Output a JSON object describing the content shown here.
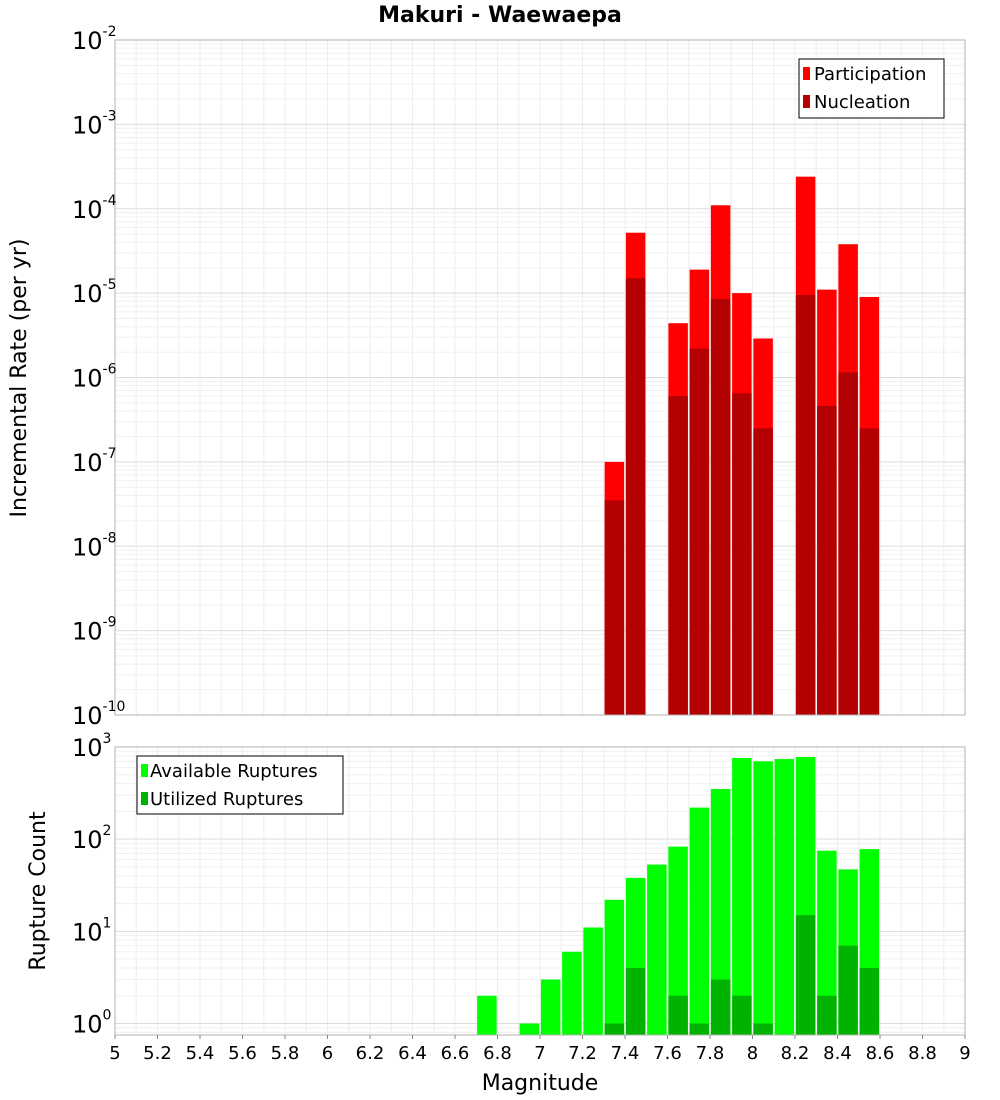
{
  "chart_data": [
    {
      "type": "bar",
      "title": "Makuri - Waewaepa",
      "xlabel": "Magnitude",
      "ylabel": "Incremental Rate (per yr)",
      "yscale": "log",
      "ylim_exp": [
        -10,
        -2
      ],
      "xlim": [
        5,
        9
      ],
      "legend_position": "top-right",
      "colors": {
        "participation": "#ff0000",
        "nucleation": "#b30000"
      },
      "series": [
        {
          "name": "Participation",
          "x": [
            7.35,
            7.45,
            7.65,
            7.75,
            7.85,
            7.95,
            8.05,
            8.25,
            8.35,
            8.45,
            8.55
          ],
          "values": [
            1e-07,
            5.2e-05,
            4.4e-06,
            1.9e-05,
            0.00011,
            1e-05,
            2.9e-06,
            0.00024,
            1.1e-05,
            3.8e-05,
            9e-06
          ]
        },
        {
          "name": "Nucleation",
          "x": [
            7.35,
            7.45,
            7.65,
            7.75,
            7.85,
            7.95,
            8.05,
            8.25,
            8.35,
            8.45,
            8.55
          ],
          "values": [
            3.5e-08,
            1.5e-05,
            6e-07,
            2.2e-06,
            8.5e-06,
            6.5e-07,
            2.5e-07,
            9.5e-06,
            4.6e-07,
            1.15e-06,
            2.5e-07
          ]
        }
      ]
    },
    {
      "type": "bar",
      "xlabel": "Magnitude",
      "ylabel": "Rupture Count",
      "yscale": "log",
      "ylim_exp": [
        0,
        3
      ],
      "ymin_value": 0.75,
      "xlim": [
        5,
        9
      ],
      "legend_position": "top-left",
      "colors": {
        "available": "#00ff00",
        "utilized": "#00b300"
      },
      "series": [
        {
          "name": "Available Ruptures",
          "x": [
            6.75,
            6.95,
            7.05,
            7.15,
            7.25,
            7.35,
            7.45,
            7.55,
            7.65,
            7.75,
            7.85,
            7.95,
            8.05,
            8.15,
            8.25,
            8.35,
            8.45,
            8.55
          ],
          "values": [
            2,
            1,
            3,
            6,
            11,
            22,
            38,
            53,
            83,
            220,
            350,
            760,
            700,
            740,
            780,
            75,
            47,
            78
          ]
        },
        {
          "name": "Utilized Ruptures",
          "x": [
            7.35,
            7.45,
            7.65,
            7.75,
            7.85,
            7.95,
            8.05,
            8.25,
            8.35,
            8.45,
            8.55
          ],
          "values": [
            1,
            4,
            2,
            1,
            3,
            2,
            1,
            15,
            2,
            7,
            4
          ]
        }
      ],
      "xticks": [
        "5",
        "5.2",
        "5.4",
        "5.6",
        "5.8",
        "6",
        "6.2",
        "6.4",
        "6.6",
        "6.8",
        "7",
        "7.2",
        "7.4",
        "7.6",
        "7.8",
        "8",
        "8.2",
        "8.4",
        "8.6",
        "8.8",
        "9"
      ]
    }
  ]
}
